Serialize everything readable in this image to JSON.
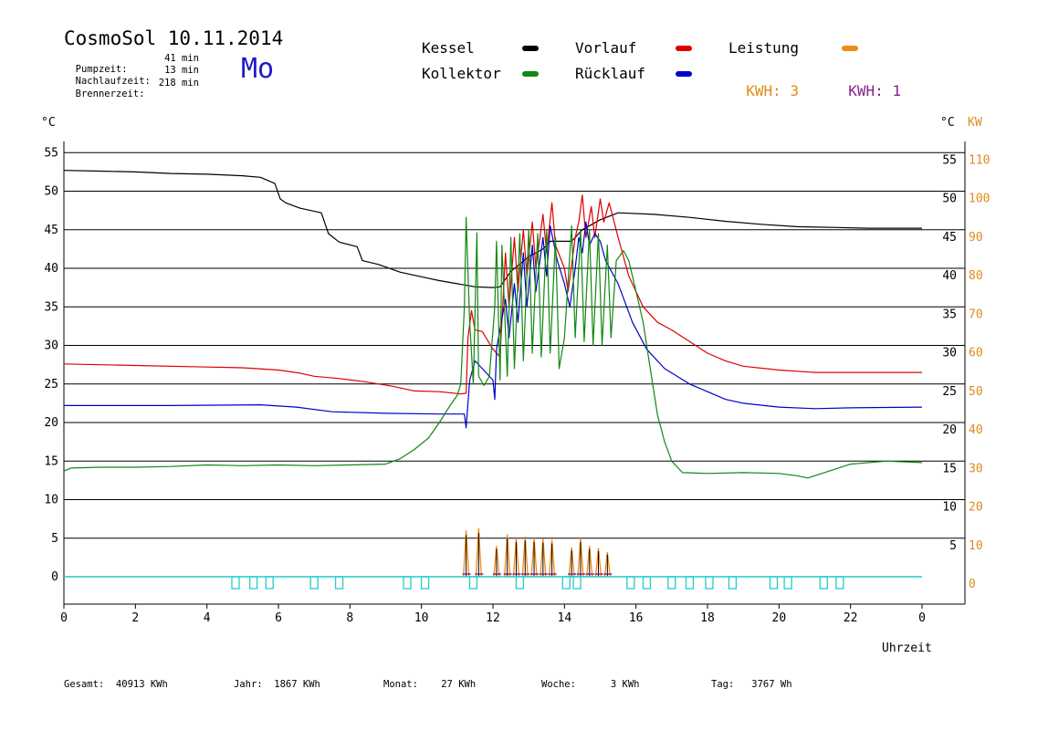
{
  "header": {
    "title": "CosmoSol 10.11.2014",
    "day": "Mo",
    "stats": [
      {
        "label": "Pumpzeit:",
        "value": "41 min"
      },
      {
        "label": "Nachlaufzeit:",
        "value": "13 min"
      },
      {
        "label": "Brennerzeit:",
        "value": "218 min"
      }
    ]
  },
  "legend": {
    "items": [
      {
        "label": "Kessel",
        "color": "#000000"
      },
      {
        "label": "Vorlauf",
        "color": "#dd0000"
      },
      {
        "label": "Leistung",
        "color": "#f08a1a"
      },
      {
        "label": "Kollektor",
        "color": "#118811"
      },
      {
        "label": "Rücklauf",
        "color": "#0000cc"
      }
    ],
    "kwh1": {
      "label": "KWH:",
      "value": "3",
      "color": "#e08a1a"
    },
    "kwh2": {
      "label": "KWH:",
      "value": "1",
      "color": "#882288"
    }
  },
  "footer": [
    {
      "label": "Gesamt:",
      "value": "40913 KWh"
    },
    {
      "label": "Jahr:",
      "value": "1867 KWh"
    },
    {
      "label": "Monat:",
      "value": "27 KWh"
    },
    {
      "label": "Woche:",
      "value": "3 KWh"
    },
    {
      "label": "Tag:",
      "value": "3767 Wh"
    }
  ],
  "chart_data": {
    "type": "line",
    "left_unit": "°C",
    "right_unit_c": "°C",
    "right_unit_kw": "KW",
    "xlabel": "Uhrzeit",
    "xlim": [
      0,
      24
    ],
    "ylim": [
      0,
      55
    ],
    "x_ticks": [
      "0",
      "2",
      "4",
      "6",
      "8",
      "10",
      "12",
      "14",
      "16",
      "18",
      "20",
      "22",
      "0"
    ],
    "y_ticks": [
      0,
      5,
      10,
      15,
      20,
      25,
      30,
      35,
      40,
      45,
      50,
      55
    ],
    "right_c_ticks": [
      "",
      "5",
      "10",
      "15",
      "20",
      "25",
      "30",
      "35",
      "40",
      "45",
      "50",
      "55"
    ],
    "right_kw_ticks": [
      "0",
      "10",
      "20",
      "30",
      "40",
      "50",
      "60",
      "70",
      "80",
      "90",
      "100",
      "110"
    ],
    "grid": true,
    "series": [
      {
        "name": "Kessel",
        "color": "#000000",
        "points": [
          [
            0,
            52.7
          ],
          [
            1,
            52.6
          ],
          [
            2,
            52.5
          ],
          [
            3,
            52.3
          ],
          [
            4,
            52.2
          ],
          [
            5,
            52
          ],
          [
            5.5,
            51.8
          ],
          [
            5.9,
            51
          ],
          [
            6.05,
            49
          ],
          [
            6.2,
            48.5
          ],
          [
            6.6,
            47.8
          ],
          [
            7.2,
            47.2
          ],
          [
            7.4,
            44.5
          ],
          [
            7.7,
            43.4
          ],
          [
            8.2,
            42.8
          ],
          [
            8.35,
            41
          ],
          [
            8.8,
            40.5
          ],
          [
            9.4,
            39.5
          ],
          [
            10,
            38.9
          ],
          [
            10.5,
            38.4
          ],
          [
            11,
            38
          ],
          [
            11.5,
            37.6
          ],
          [
            12,
            37.5
          ],
          [
            12.2,
            37.6
          ],
          [
            12.5,
            39.6
          ],
          [
            13,
            41.5
          ],
          [
            13.4,
            42.5
          ],
          [
            13.6,
            43.5
          ],
          [
            14.2,
            43.5
          ],
          [
            14.5,
            45
          ],
          [
            15,
            46.3
          ],
          [
            15.5,
            47.2
          ],
          [
            16.5,
            47
          ],
          [
            17.5,
            46.6
          ],
          [
            18.5,
            46.1
          ],
          [
            19.5,
            45.7
          ],
          [
            20.5,
            45.4
          ],
          [
            21.5,
            45.3
          ],
          [
            22.5,
            45.2
          ],
          [
            24,
            45.2
          ]
        ]
      },
      {
        "name": "Vorlauf",
        "color": "#dd0000",
        "points": [
          [
            0,
            27.6
          ],
          [
            2,
            27.4
          ],
          [
            4,
            27.2
          ],
          [
            5,
            27.1
          ],
          [
            6,
            26.8
          ],
          [
            6.6,
            26.4
          ],
          [
            7,
            26
          ],
          [
            7.7,
            25.7
          ],
          [
            8.4,
            25.3
          ],
          [
            9.2,
            24.7
          ],
          [
            9.8,
            24.1
          ],
          [
            10.5,
            24
          ],
          [
            11.1,
            23.7
          ],
          [
            11.25,
            23.8
          ],
          [
            11.3,
            31
          ],
          [
            11.4,
            34.5
          ],
          [
            11.5,
            32
          ],
          [
            11.7,
            31.8
          ],
          [
            12,
            29.5
          ],
          [
            12.2,
            28.5
          ],
          [
            12.35,
            42
          ],
          [
            12.45,
            35
          ],
          [
            12.6,
            44
          ],
          [
            12.7,
            37
          ],
          [
            12.85,
            45
          ],
          [
            12.95,
            39
          ],
          [
            13.1,
            46
          ],
          [
            13.2,
            40
          ],
          [
            13.4,
            47
          ],
          [
            13.5,
            42
          ],
          [
            13.65,
            48.5
          ],
          [
            13.75,
            43
          ],
          [
            14,
            40
          ],
          [
            14.1,
            37
          ],
          [
            14.3,
            44
          ],
          [
            14.4,
            46
          ],
          [
            14.5,
            49.5
          ],
          [
            14.6,
            44
          ],
          [
            14.75,
            48
          ],
          [
            14.85,
            44
          ],
          [
            15,
            49
          ],
          [
            15.1,
            46
          ],
          [
            15.25,
            48.5
          ],
          [
            15.5,
            44
          ],
          [
            15.8,
            39
          ],
          [
            16.2,
            35
          ],
          [
            16.6,
            33
          ],
          [
            17,
            32
          ],
          [
            17.5,
            30.5
          ],
          [
            18,
            29
          ],
          [
            18.5,
            28
          ],
          [
            19,
            27.3
          ],
          [
            20,
            26.8
          ],
          [
            21,
            26.5
          ],
          [
            22,
            26.5
          ],
          [
            24,
            26.5
          ]
        ]
      },
      {
        "name": "Rücklauf",
        "color": "#0000cc",
        "points": [
          [
            0,
            22.2
          ],
          [
            3,
            22.2
          ],
          [
            5.5,
            22.3
          ],
          [
            6.5,
            22
          ],
          [
            7.5,
            21.4
          ],
          [
            9,
            21.2
          ],
          [
            10.5,
            21.1
          ],
          [
            11.2,
            21.1
          ],
          [
            11.25,
            19.3
          ],
          [
            11.35,
            25.5
          ],
          [
            11.5,
            28
          ],
          [
            11.7,
            27
          ],
          [
            12,
            25.5
          ],
          [
            12.05,
            23
          ],
          [
            12.1,
            29.5
          ],
          [
            12.35,
            36
          ],
          [
            12.45,
            31
          ],
          [
            12.6,
            38
          ],
          [
            12.7,
            33
          ],
          [
            12.85,
            42
          ],
          [
            12.95,
            35
          ],
          [
            13.1,
            43
          ],
          [
            13.2,
            37
          ],
          [
            13.4,
            44
          ],
          [
            13.5,
            39
          ],
          [
            13.6,
            45.5
          ],
          [
            13.8,
            41
          ],
          [
            14,
            38
          ],
          [
            14.15,
            35
          ],
          [
            14.3,
            40
          ],
          [
            14.4,
            44
          ],
          [
            14.5,
            42
          ],
          [
            14.6,
            46
          ],
          [
            14.7,
            43
          ],
          [
            14.85,
            44.5
          ],
          [
            15,
            43.5
          ],
          [
            15.15,
            41
          ],
          [
            15.5,
            38
          ],
          [
            15.9,
            33
          ],
          [
            16.3,
            29.5
          ],
          [
            16.8,
            27
          ],
          [
            17.5,
            25
          ],
          [
            18,
            24
          ],
          [
            18.5,
            23
          ],
          [
            19,
            22.5
          ],
          [
            20,
            22
          ],
          [
            21,
            21.8
          ],
          [
            22,
            21.9
          ],
          [
            24,
            22
          ]
        ]
      },
      {
        "name": "Kollektor",
        "color": "#118811",
        "points": [
          [
            0,
            13.7
          ],
          [
            0.2,
            14.1
          ],
          [
            1,
            14.2
          ],
          [
            2,
            14.2
          ],
          [
            3,
            14.3
          ],
          [
            4,
            14.5
          ],
          [
            5,
            14.4
          ],
          [
            6,
            14.5
          ],
          [
            7,
            14.4
          ],
          [
            8,
            14.5
          ],
          [
            9,
            14.6
          ],
          [
            9.4,
            15.3
          ],
          [
            9.8,
            16.5
          ],
          [
            10.2,
            18
          ],
          [
            10.5,
            20
          ],
          [
            10.8,
            22.2
          ],
          [
            11,
            23.5
          ],
          [
            11.1,
            25
          ],
          [
            11.2,
            35
          ],
          [
            11.25,
            46.6
          ],
          [
            11.35,
            33
          ],
          [
            11.45,
            25
          ],
          [
            11.55,
            44.6
          ],
          [
            11.6,
            26
          ],
          [
            11.75,
            24.8
          ],
          [
            11.9,
            26
          ],
          [
            12.05,
            35
          ],
          [
            12.1,
            43.5
          ],
          [
            12.2,
            25.5
          ],
          [
            12.25,
            43
          ],
          [
            12.4,
            26
          ],
          [
            12.5,
            44
          ],
          [
            12.6,
            27
          ],
          [
            12.75,
            44.5
          ],
          [
            12.85,
            28
          ],
          [
            13,
            45
          ],
          [
            13.1,
            29
          ],
          [
            13.25,
            44.5
          ],
          [
            13.35,
            28.5
          ],
          [
            13.5,
            45
          ],
          [
            13.6,
            29
          ],
          [
            13.75,
            44
          ],
          [
            13.85,
            27
          ],
          [
            14,
            31
          ],
          [
            14.2,
            45.5
          ],
          [
            14.3,
            31
          ],
          [
            14.45,
            45
          ],
          [
            14.55,
            30.5
          ],
          [
            14.7,
            45
          ],
          [
            14.8,
            30
          ],
          [
            14.95,
            44.5
          ],
          [
            15.05,
            30
          ],
          [
            15.2,
            43
          ],
          [
            15.3,
            31
          ],
          [
            15.45,
            41
          ],
          [
            15.65,
            42.3
          ],
          [
            15.8,
            41
          ],
          [
            16,
            37
          ],
          [
            16.2,
            33
          ],
          [
            16.4,
            27
          ],
          [
            16.6,
            21
          ],
          [
            16.8,
            17.5
          ],
          [
            17,
            15
          ],
          [
            17.3,
            13.5
          ],
          [
            18,
            13.4
          ],
          [
            19,
            13.5
          ],
          [
            20,
            13.4
          ],
          [
            20.5,
            13.1
          ],
          [
            20.8,
            12.8
          ],
          [
            21.2,
            13.4
          ],
          [
            22,
            14.6
          ],
          [
            23,
            15
          ],
          [
            24,
            14.8
          ]
        ]
      }
    ],
    "power_bars": {
      "color": "#f08a1a",
      "peaks": [
        [
          11.25,
          6
        ],
        [
          11.6,
          6.3
        ],
        [
          12.1,
          4
        ],
        [
          12.4,
          5.5
        ],
        [
          12.65,
          5
        ],
        [
          12.9,
          5.2
        ],
        [
          13.15,
          5
        ],
        [
          13.4,
          4.9
        ],
        [
          13.65,
          4.8
        ],
        [
          14.2,
          3.8
        ],
        [
          14.45,
          5
        ],
        [
          14.7,
          4
        ],
        [
          14.95,
          3.7
        ],
        [
          15.2,
          3.2
        ]
      ]
    },
    "pump_markers": [
      4.8,
      5.3,
      5.75,
      7,
      7.7,
      9.6,
      10.1,
      11.45,
      12.75,
      14.05,
      14.35,
      15.85,
      16.3,
      17,
      17.5,
      18.05,
      18.7,
      19.85,
      20.25,
      21.25,
      21.7
    ]
  }
}
